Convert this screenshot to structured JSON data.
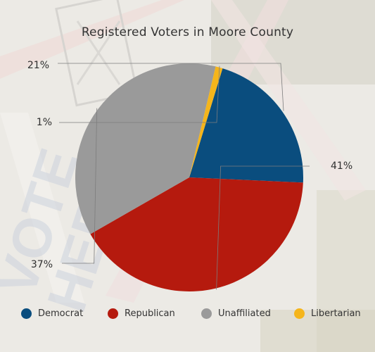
{
  "chart_data": {
    "type": "pie",
    "title": "Registered Voters in Moore County",
    "slices": [
      {
        "label": "Democrat",
        "value": 21,
        "display": "21%",
        "color": "#0a4d7e"
      },
      {
        "label": "Republican",
        "value": 41,
        "display": "41%",
        "color": "#b51a0e"
      },
      {
        "label": "Unaffiliated",
        "value": 37,
        "display": "37%",
        "color": "#9a9a9a"
      },
      {
        "label": "Libertarian",
        "value": 1,
        "display": "1%",
        "color": "#f5b51b"
      }
    ],
    "legend_position": "bottom"
  },
  "background": {
    "sign_text": [
      "VOTE",
      "HERE"
    ]
  }
}
